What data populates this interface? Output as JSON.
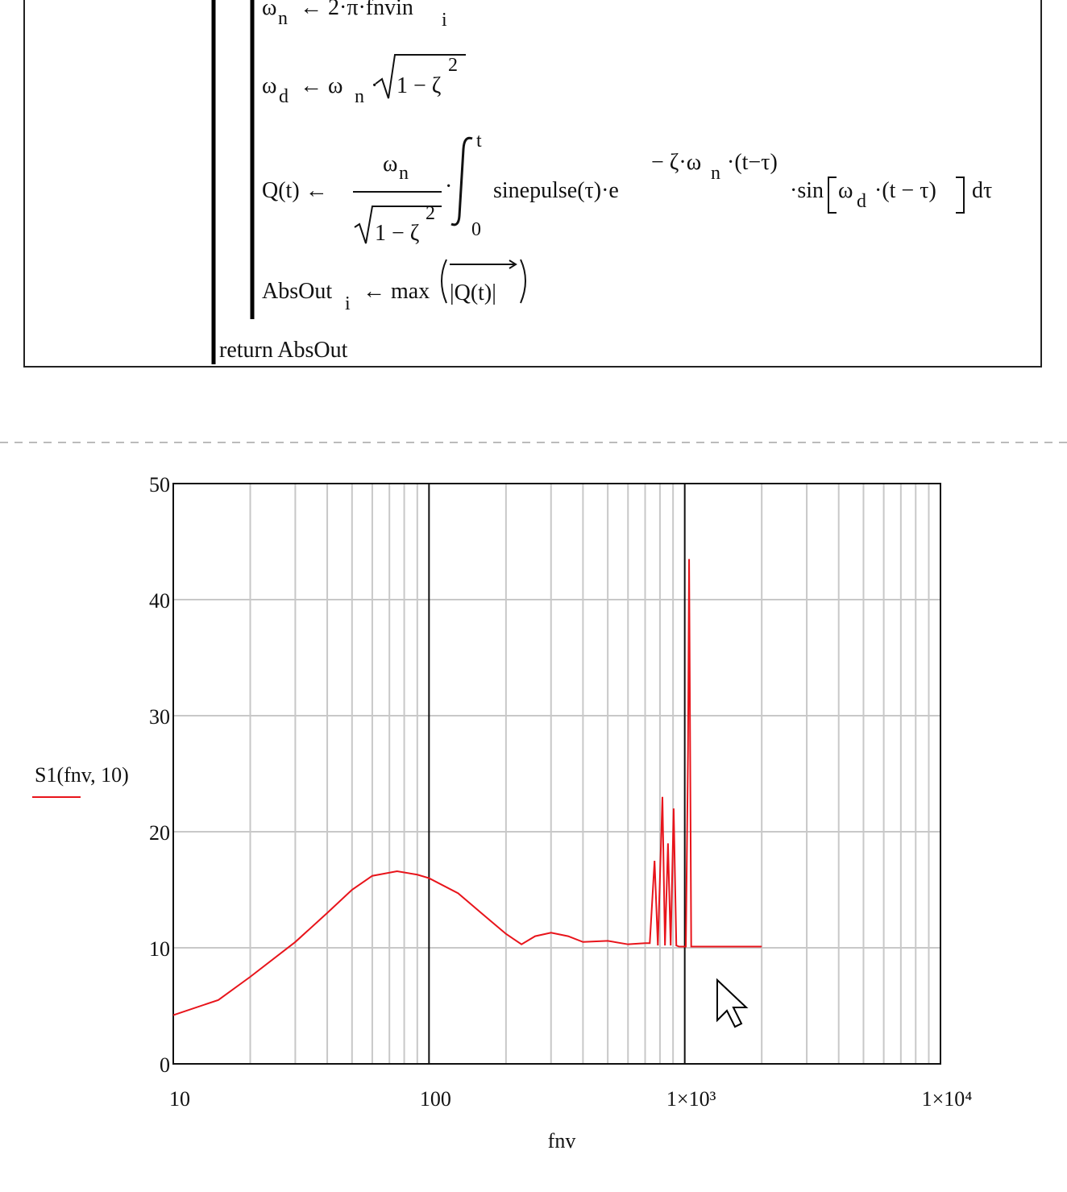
{
  "program": {
    "line1": [
      "ω",
      "n",
      "← 2·π·fnvin",
      "i"
    ],
    "line2": [
      "ω",
      "d",
      "← ω",
      "n",
      "·",
      "1 − ζ",
      "2"
    ],
    "line3": {
      "lhs": "Q(t) ←",
      "num": [
        "ω",
        "n"
      ],
      "den": [
        "1 − ζ",
        "2"
      ],
      "dot": "·",
      "upper": "t",
      "lower": "0",
      "integrand": "sinepulse(τ)·e",
      "exp": [
        "− ζ·ω",
        "n",
        "·(t−τ)"
      ],
      "tail": [
        "·sin",
        "ω",
        "d",
        "·(t − τ)",
        "dτ"
      ]
    },
    "line4": [
      "AbsOut",
      "i",
      "← max",
      "|Q(t)|"
    ],
    "ret": "return  AbsOut"
  },
  "chart_data": {
    "type": "line",
    "x_label": "fnv",
    "log_x": true,
    "grid": true,
    "xlim": [
      10,
      10000
    ],
    "xticks": [
      10,
      100,
      {
        "value": 1000,
        "label": "1×10³"
      },
      {
        "value": 10000,
        "label": "1×10⁴"
      }
    ],
    "ylim": [
      0,
      50
    ],
    "yticks": [
      0,
      10,
      20,
      30,
      40,
      50
    ],
    "x": [
      10,
      15,
      20,
      30,
      40,
      50,
      60,
      75,
      90,
      100,
      130,
      160,
      200,
      230,
      260,
      300,
      350,
      400,
      500,
      600,
      700,
      730,
      762,
      785,
      800,
      818,
      837,
      860,
      881,
      905,
      927,
      950,
      1010,
      1030,
      1040,
      1050,
      1060,
      1200,
      2000
    ],
    "series": [
      {
        "name": "S1(fnv, 10)",
        "color": "#e8141b",
        "values": [
          4.2,
          5.5,
          7.5,
          10.5,
          13,
          15,
          16.2,
          16.6,
          16.3,
          16,
          14.7,
          13,
          11.2,
          10.3,
          11,
          11.3,
          11,
          10.5,
          10.6,
          10.3,
          10.4,
          10.4,
          17.5,
          10.2,
          16,
          23,
          10.2,
          19,
          10.2,
          22,
          10.2,
          10.1,
          10.1,
          27,
          43.5,
          27,
          10.1,
          10.1,
          10.1
        ]
      }
    ]
  }
}
